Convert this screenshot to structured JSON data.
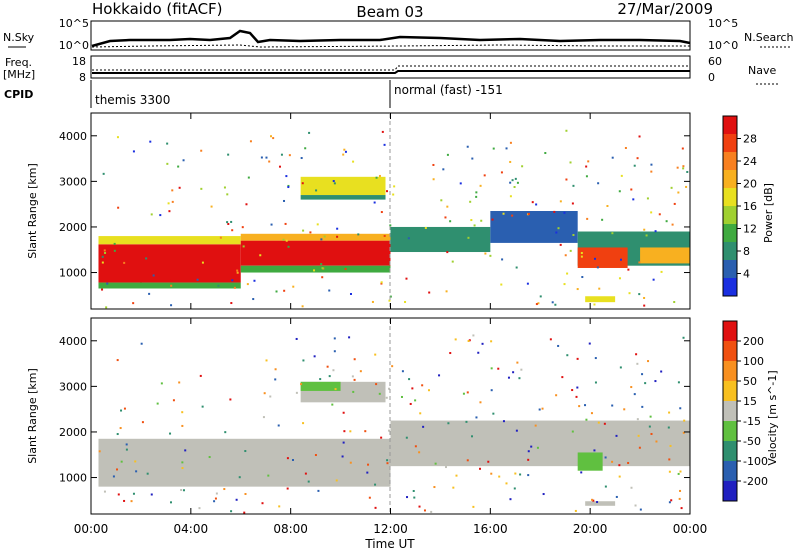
{
  "header": {
    "station": "Hokkaido (fitACF)",
    "beam": "Beam 03",
    "date": "27/Mar/2009"
  },
  "summary_panels": {
    "noise": {
      "left_label": "N.Sky",
      "right_label": "N.Search",
      "left_ticks": [
        "10^5",
        "10^0"
      ],
      "right_ticks": [
        "10^5",
        "10^0"
      ]
    },
    "freq": {
      "left_label_line1": "Freq.",
      "left_label_line2": "[MHz]",
      "right_label": "Nave",
      "left_ticks": [
        "18",
        "8"
      ],
      "right_ticks": [
        "60",
        "0"
      ]
    },
    "cpid": {
      "label": "CPID",
      "modes": [
        {
          "name": "themis 3300",
          "start_hour": 0
        },
        {
          "name": "normal (fast) -151",
          "start_hour": 12
        }
      ]
    }
  },
  "chart_data": [
    {
      "type": "heatmap",
      "name": "power",
      "ylabel": "Slant Range [km]",
      "ylim": [
        200,
        4500
      ],
      "y_ticks": [
        1000,
        2000,
        3000,
        4000
      ],
      "xlim_hours": [
        0,
        24
      ],
      "colorbar": {
        "label": "Power [dB]",
        "tick_labels": [
          "4",
          "8",
          "12",
          "16",
          "20",
          "24",
          "28"
        ],
        "colors": [
          "#1a2fe0",
          "#2a5fb0",
          "#2f8f6f",
          "#3faa40",
          "#a0d030",
          "#e8e020",
          "#f8b020",
          "#f88020",
          "#f04010",
          "#e01010"
        ]
      },
      "bands": [
        {
          "x0": 0.3,
          "x1": 6.0,
          "y0": 780,
          "y1": 1620,
          "level": 9
        },
        {
          "x0": 0.3,
          "x1": 6.0,
          "y0": 1620,
          "y1": 1800,
          "level": 5
        },
        {
          "x0": 0.3,
          "x1": 6.0,
          "y0": 650,
          "y1": 780,
          "level": 3
        },
        {
          "x0": 6.0,
          "x1": 12.0,
          "y0": 1150,
          "y1": 1700,
          "level": 9
        },
        {
          "x0": 6.0,
          "x1": 12.0,
          "y0": 1700,
          "y1": 1850,
          "level": 6
        },
        {
          "x0": 6.0,
          "x1": 12.0,
          "y0": 1000,
          "y1": 1150,
          "level": 3
        },
        {
          "x0": 8.4,
          "x1": 11.8,
          "y0": 2700,
          "y1": 3100,
          "level": 5
        },
        {
          "x0": 8.4,
          "x1": 11.8,
          "y0": 2600,
          "y1": 2700,
          "level": 2
        },
        {
          "x0": 12.0,
          "x1": 16.0,
          "y0": 1450,
          "y1": 2000,
          "level": 2
        },
        {
          "x0": 16.0,
          "x1": 19.5,
          "y0": 1650,
          "y1": 2350,
          "level": 1
        },
        {
          "x0": 19.5,
          "x1": 24.0,
          "y0": 1150,
          "y1": 1900,
          "level": 2
        },
        {
          "x0": 19.5,
          "x1": 21.5,
          "y0": 1100,
          "y1": 1550,
          "level": 8
        },
        {
          "x0": 22.0,
          "x1": 24.0,
          "y0": 1200,
          "y1": 1550,
          "level": 6
        },
        {
          "x0": 19.8,
          "x1": 21.0,
          "y0": 350,
          "y1": 480,
          "level": 5
        }
      ]
    },
    {
      "type": "heatmap",
      "name": "velocity",
      "ylabel": "Slant Range [km]",
      "ylim": [
        200,
        4500
      ],
      "y_ticks": [
        1000,
        2000,
        3000,
        4000
      ],
      "xlim_hours": [
        0,
        24
      ],
      "colorbar": {
        "label": "Velocity [m s^-1]",
        "tick_labels": [
          "200",
          "100",
          "50",
          "15",
          "-15",
          "-50",
          "-100",
          "-200"
        ],
        "colors": [
          "#2020c0",
          "#2a5fb0",
          "#2f8f6f",
          "#60c040",
          "#c0c0b8",
          "#f8c020",
          "#f89020",
          "#f05010",
          "#e01010"
        ]
      },
      "bands": [
        {
          "x0": 0.3,
          "x1": 12.0,
          "y0": 800,
          "y1": 1850,
          "level": 4
        },
        {
          "x0": 8.4,
          "x1": 11.8,
          "y0": 2650,
          "y1": 3100,
          "level": 4
        },
        {
          "x0": 8.4,
          "x1": 10.0,
          "y0": 2900,
          "y1": 3100,
          "level": 3
        },
        {
          "x0": 12.0,
          "x1": 24.0,
          "y0": 1250,
          "y1": 2250,
          "level": 4
        },
        {
          "x0": 19.5,
          "x1": 20.5,
          "y0": 1150,
          "y1": 1550,
          "level": 3
        },
        {
          "x0": 19.8,
          "x1": 21.0,
          "y0": 380,
          "y1": 480,
          "level": 4
        }
      ]
    }
  ],
  "time_axis": {
    "tick_labels": [
      "00:00",
      "04:00",
      "08:00",
      "12:00",
      "16:00",
      "20:00",
      "00:00"
    ],
    "label": "Time UT"
  }
}
